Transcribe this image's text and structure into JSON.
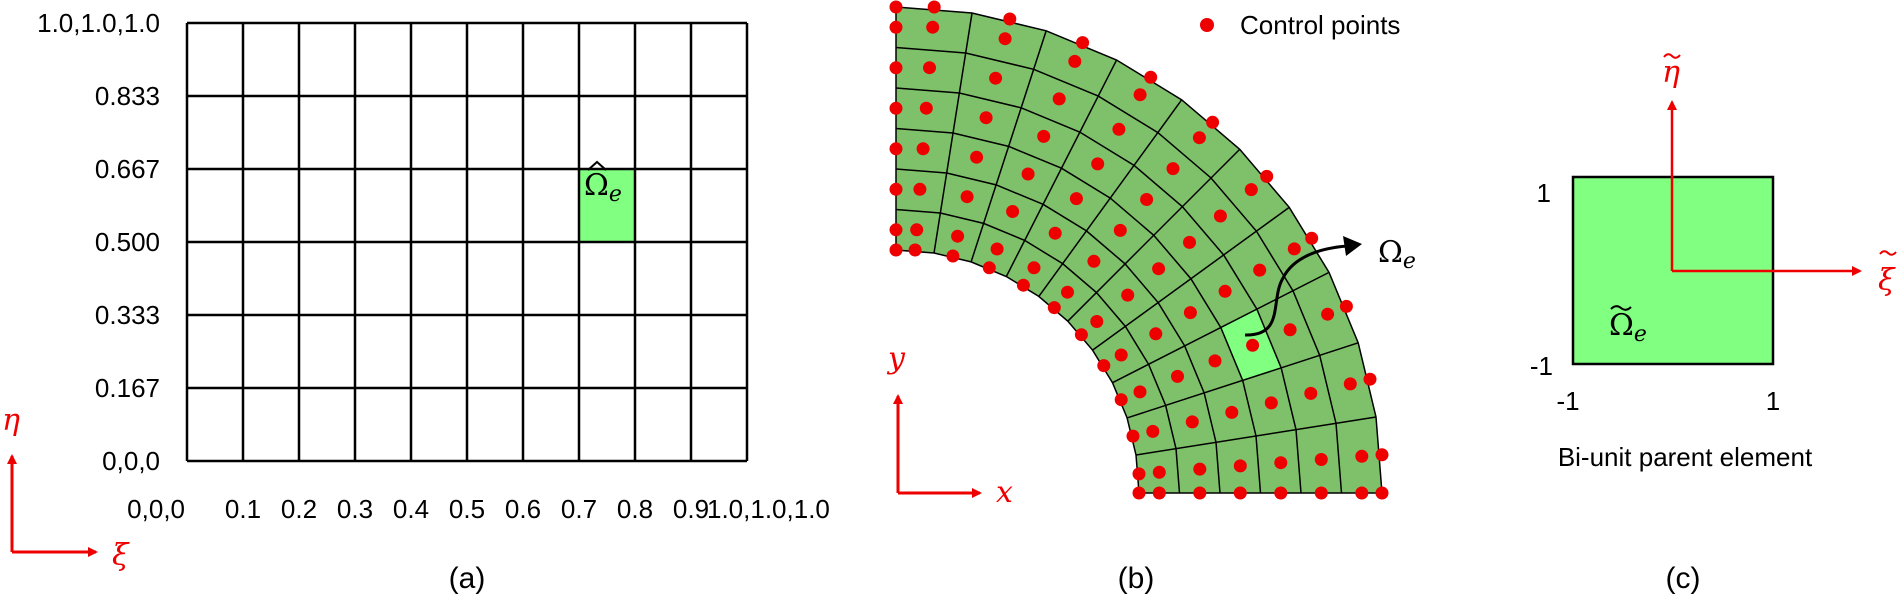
{
  "colors": {
    "axis": "#ee0000",
    "mesh_fill": "#7fc06a",
    "highlight": "#80ff80",
    "line": "#000000",
    "control_point": "#ee0000"
  },
  "panel_a": {
    "caption": "(a)",
    "elements_xi": 10,
    "elements_eta": 6,
    "highlight": {
      "xi": [
        0.7,
        0.8
      ],
      "eta": [
        0.5,
        0.667
      ]
    },
    "xi_labels": [
      "0,0,0",
      "0.1",
      "0.2",
      "0.3",
      "0.4",
      "0.5",
      "0.6",
      "0.7",
      "0.8",
      "0.9",
      "1.0,1.0,1.0"
    ],
    "eta_labels": [
      "0,0,0",
      "0.167",
      "0.333",
      "0.500",
      "0.667",
      "0.833",
      "1.0,1.0,1.0"
    ],
    "element_label": {
      "symbol": "Ω",
      "subscript": "e",
      "accent": "hat"
    },
    "axis_x": "ξ",
    "axis_y": "η"
  },
  "panel_b": {
    "caption": "(b)",
    "legend": "Control points",
    "elements_xi": 10,
    "elements_eta": 6,
    "control_points_xi": 12,
    "control_points_eta": 8,
    "highlight": {
      "xi": [
        0.7,
        0.8
      ],
      "eta": [
        0.5,
        0.667
      ]
    },
    "element_label": {
      "symbol": "Ω",
      "subscript": "e"
    },
    "axis_x": "x",
    "axis_y": "y"
  },
  "panel_c": {
    "caption": "(c)",
    "title": "Bi-unit parent element",
    "ticks": {
      "x_min": "-1",
      "x_max": "1",
      "y_min": "-1",
      "y_max": "1"
    },
    "element_label": {
      "symbol": "Ω",
      "subscript": "e",
      "accent": "tilde"
    },
    "axis_x": "ξ",
    "axis_y": "η",
    "axis_accent": "tilde"
  }
}
